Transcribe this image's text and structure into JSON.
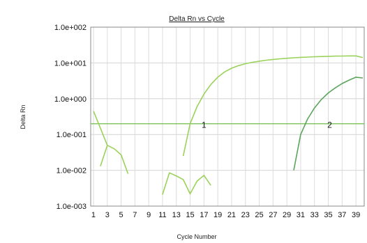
{
  "chart_data": {
    "type": "line",
    "title": "Delta Rn vs Cycle",
    "xlabel": "Cycle Number",
    "ylabel": "Delta Rn",
    "y_scale": "log",
    "ylim": [
      0.001,
      100
    ],
    "xlim": [
      0.6,
      40.2
    ],
    "y_ticks": [
      "1.0e+002",
      "1.0e+001",
      "1.0e+000",
      "1.0e-001",
      "1.0e-002",
      "1.0e-003"
    ],
    "x_ticks": [
      1,
      3,
      5,
      7,
      9,
      11,
      13,
      15,
      17,
      19,
      21,
      23,
      25,
      27,
      29,
      31,
      33,
      35,
      37,
      39
    ],
    "grid": true,
    "threshold": {
      "value": 0.2,
      "color": "#6fbb4a"
    },
    "annotations": [
      {
        "text": "1",
        "x": 17.0,
        "y": 0.2
      },
      {
        "text": "2",
        "x": 35.2,
        "y": 0.2
      }
    ],
    "series": [
      {
        "color": "#9ad25a",
        "points": [
          [
            1,
            0.45
          ],
          [
            2,
            0.15
          ],
          [
            3,
            0.05
          ]
        ]
      },
      {
        "color": "#9ad25a",
        "points": [
          [
            2,
            0.013
          ],
          [
            3,
            0.05
          ],
          [
            4,
            0.04
          ],
          [
            5,
            0.027
          ],
          [
            6,
            0.008
          ]
        ]
      },
      {
        "color": "#9ad25a",
        "points": [
          [
            11,
            0.0021
          ],
          [
            12,
            0.0085
          ],
          [
            13,
            0.007
          ],
          [
            14,
            0.0055
          ],
          [
            15,
            0.0022
          ],
          [
            16,
            0.005
          ],
          [
            17,
            0.0072
          ],
          [
            18,
            0.0038
          ]
        ]
      },
      {
        "color": "#9ad25a",
        "points": [
          [
            14,
            0.025
          ],
          [
            15,
            0.2
          ],
          [
            16,
            0.6
          ],
          [
            17,
            1.35
          ],
          [
            18,
            2.5
          ],
          [
            19,
            4.0
          ],
          [
            20,
            5.6
          ],
          [
            21,
            7.1
          ],
          [
            22,
            8.4
          ],
          [
            23,
            9.5
          ],
          [
            24,
            10.4
          ],
          [
            25,
            11.2
          ],
          [
            26,
            11.9
          ],
          [
            27,
            12.5
          ],
          [
            28,
            13.0
          ],
          [
            29,
            13.5
          ],
          [
            30,
            13.9
          ],
          [
            31,
            14.3
          ],
          [
            32,
            14.6
          ],
          [
            33,
            14.9
          ],
          [
            34,
            15.1
          ],
          [
            35,
            15.3
          ],
          [
            36,
            15.5
          ],
          [
            37,
            15.6
          ],
          [
            38,
            15.7
          ],
          [
            39,
            15.7
          ],
          [
            40,
            14.2
          ]
        ]
      },
      {
        "color": "#5aa55a",
        "points": [
          [
            30,
            0.01
          ],
          [
            31,
            0.1
          ],
          [
            32,
            0.27
          ],
          [
            33,
            0.55
          ],
          [
            34,
            0.95
          ],
          [
            35,
            1.45
          ],
          [
            36,
            2.0
          ],
          [
            37,
            2.65
          ],
          [
            38,
            3.3
          ],
          [
            39,
            4.0
          ],
          [
            40,
            3.8
          ]
        ]
      }
    ]
  }
}
